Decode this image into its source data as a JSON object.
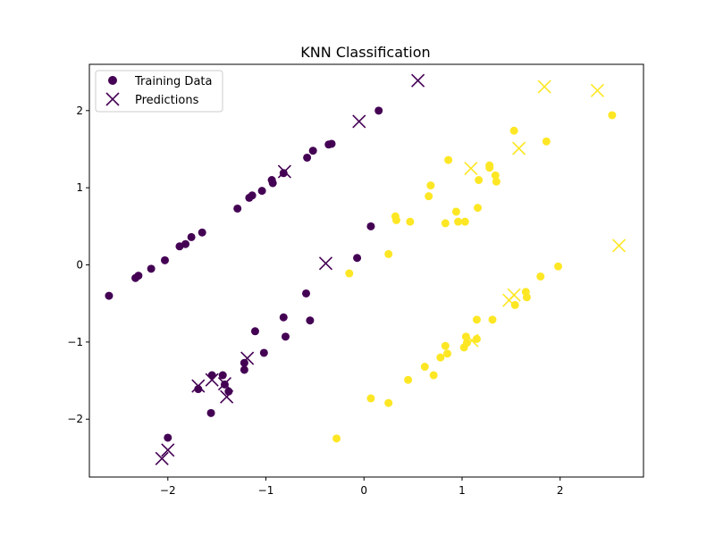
{
  "chart_data": {
    "type": "scatter",
    "title": "KNN Classification",
    "xlabel": "",
    "ylabel": "",
    "xlim": [
      -2.8,
      2.85
    ],
    "ylim": [
      -2.75,
      2.6
    ],
    "xticks": [
      -2,
      -1,
      0,
      1,
      2
    ],
    "yticks": [
      -2,
      -1,
      0,
      1,
      2
    ],
    "xtick_labels": [
      "−2",
      "−1",
      "0",
      "1",
      "2"
    ],
    "ytick_labels": [
      "−2",
      "−1",
      "0",
      "1",
      "2"
    ],
    "grid": false,
    "legend": {
      "placement": "top-left",
      "entries": [
        "Training Data",
        "Predictions"
      ]
    },
    "colors": {
      "class_0": "#440154",
      "class_1": "#fde725"
    },
    "series": [
      {
        "name": "Training Data",
        "marker": "circle",
        "points": [
          {
            "x": -2.6,
            "y": -0.4,
            "c": 0
          },
          {
            "x": -2.33,
            "y": -0.17,
            "c": 0
          },
          {
            "x": -2.3,
            "y": -0.14,
            "c": 0
          },
          {
            "x": -2.17,
            "y": -0.05,
            "c": 0
          },
          {
            "x": -2.03,
            "y": 0.06,
            "c": 0
          },
          {
            "x": -1.88,
            "y": 0.24,
            "c": 0
          },
          {
            "x": -1.82,
            "y": 0.27,
            "c": 0
          },
          {
            "x": -1.76,
            "y": 0.36,
            "c": 0
          },
          {
            "x": -1.65,
            "y": 0.42,
            "c": 0
          },
          {
            "x": -1.29,
            "y": 0.73,
            "c": 0
          },
          {
            "x": -1.17,
            "y": 0.87,
            "c": 0
          },
          {
            "x": -1.14,
            "y": 0.9,
            "c": 0
          },
          {
            "x": -1.04,
            "y": 0.96,
            "c": 0
          },
          {
            "x": -0.94,
            "y": 1.1,
            "c": 0
          },
          {
            "x": -0.93,
            "y": 1.06,
            "c": 0
          },
          {
            "x": -0.82,
            "y": 1.19,
            "c": 0
          },
          {
            "x": -0.58,
            "y": 1.39,
            "c": 0
          },
          {
            "x": -0.52,
            "y": 1.48,
            "c": 0
          },
          {
            "x": -0.36,
            "y": 1.56,
            "c": 0
          },
          {
            "x": -0.33,
            "y": 1.57,
            "c": 0
          },
          {
            "x": 0.15,
            "y": 2.0,
            "c": 0
          },
          {
            "x": 0.07,
            "y": 0.5,
            "c": 0
          },
          {
            "x": -0.07,
            "y": 0.09,
            "c": 0
          },
          {
            "x": -0.59,
            "y": -0.37,
            "c": 0
          },
          {
            "x": -0.55,
            "y": -0.72,
            "c": 0
          },
          {
            "x": -0.82,
            "y": -0.68,
            "c": 0
          },
          {
            "x": -0.8,
            "y": -0.93,
            "c": 0
          },
          {
            "x": -1.11,
            "y": -0.86,
            "c": 0
          },
          {
            "x": -1.02,
            "y": -1.14,
            "c": 0
          },
          {
            "x": -1.22,
            "y": -1.27,
            "c": 0
          },
          {
            "x": -1.22,
            "y": -1.36,
            "c": 0
          },
          {
            "x": -1.44,
            "y": -1.43,
            "c": 0
          },
          {
            "x": -1.55,
            "y": -1.43,
            "c": 0
          },
          {
            "x": -1.42,
            "y": -1.55,
            "c": 0
          },
          {
            "x": -1.38,
            "y": -1.64,
            "c": 0
          },
          {
            "x": -1.69,
            "y": -1.61,
            "c": 0
          },
          {
            "x": -1.56,
            "y": -1.92,
            "c": 0
          },
          {
            "x": -2.0,
            "y": -2.24,
            "c": 0
          },
          {
            "x": 2.53,
            "y": 1.94,
            "c": 1
          },
          {
            "x": 1.53,
            "y": 1.74,
            "c": 1
          },
          {
            "x": 1.86,
            "y": 1.6,
            "c": 1
          },
          {
            "x": 0.86,
            "y": 1.36,
            "c": 1
          },
          {
            "x": 1.28,
            "y": 1.29,
            "c": 1
          },
          {
            "x": 1.28,
            "y": 1.26,
            "c": 1
          },
          {
            "x": 1.34,
            "y": 1.16,
            "c": 1
          },
          {
            "x": 1.17,
            "y": 1.1,
            "c": 1
          },
          {
            "x": 1.35,
            "y": 1.08,
            "c": 1
          },
          {
            "x": 0.68,
            "y": 1.03,
            "c": 1
          },
          {
            "x": 0.66,
            "y": 0.89,
            "c": 1
          },
          {
            "x": 1.16,
            "y": 0.74,
            "c": 1
          },
          {
            "x": 0.94,
            "y": 0.69,
            "c": 1
          },
          {
            "x": 0.32,
            "y": 0.63,
            "c": 1
          },
          {
            "x": 0.33,
            "y": 0.58,
            "c": 1
          },
          {
            "x": 0.47,
            "y": 0.56,
            "c": 1
          },
          {
            "x": 0.96,
            "y": 0.56,
            "c": 1
          },
          {
            "x": 1.03,
            "y": 0.56,
            "c": 1
          },
          {
            "x": 0.83,
            "y": 0.54,
            "c": 1
          },
          {
            "x": 0.25,
            "y": 0.14,
            "c": 1
          },
          {
            "x": -0.15,
            "y": -0.11,
            "c": 1
          },
          {
            "x": 1.98,
            "y": -0.02,
            "c": 1
          },
          {
            "x": 1.8,
            "y": -0.15,
            "c": 1
          },
          {
            "x": 1.65,
            "y": -0.35,
            "c": 1
          },
          {
            "x": 1.66,
            "y": -0.42,
            "c": 1
          },
          {
            "x": 1.54,
            "y": -0.52,
            "c": 1
          },
          {
            "x": 1.15,
            "y": -0.71,
            "c": 1
          },
          {
            "x": 1.31,
            "y": -0.71,
            "c": 1
          },
          {
            "x": 1.04,
            "y": -0.93,
            "c": 1
          },
          {
            "x": 1.15,
            "y": -0.96,
            "c": 1
          },
          {
            "x": 1.05,
            "y": -1.01,
            "c": 1
          },
          {
            "x": 1.02,
            "y": -1.07,
            "c": 1
          },
          {
            "x": 0.83,
            "y": -1.05,
            "c": 1
          },
          {
            "x": 0.85,
            "y": -1.15,
            "c": 1
          },
          {
            "x": 0.78,
            "y": -1.2,
            "c": 1
          },
          {
            "x": 0.62,
            "y": -1.32,
            "c": 1
          },
          {
            "x": 0.71,
            "y": -1.43,
            "c": 1
          },
          {
            "x": 0.45,
            "y": -1.49,
            "c": 1
          },
          {
            "x": 0.07,
            "y": -1.73,
            "c": 1
          },
          {
            "x": 0.25,
            "y": -1.79,
            "c": 1
          },
          {
            "x": -0.28,
            "y": -2.25,
            "c": 1
          }
        ]
      },
      {
        "name": "Predictions",
        "marker": "x",
        "points": [
          {
            "x": 0.55,
            "y": 2.39,
            "c": 0
          },
          {
            "x": -0.05,
            "y": 1.86,
            "c": 0
          },
          {
            "x": -0.81,
            "y": 1.21,
            "c": 0
          },
          {
            "x": -0.39,
            "y": 0.02,
            "c": 0
          },
          {
            "x": -1.19,
            "y": -1.21,
            "c": 0
          },
          {
            "x": -1.69,
            "y": -1.57,
            "c": 0
          },
          {
            "x": -1.55,
            "y": -1.49,
            "c": 0
          },
          {
            "x": -1.42,
            "y": -1.54,
            "c": 0
          },
          {
            "x": -1.4,
            "y": -1.71,
            "c": 0
          },
          {
            "x": -2.0,
            "y": -2.4,
            "c": 0
          },
          {
            "x": -2.06,
            "y": -2.51,
            "c": 0
          },
          {
            "x": 1.84,
            "y": 2.31,
            "c": 1
          },
          {
            "x": 2.38,
            "y": 2.26,
            "c": 1
          },
          {
            "x": 1.58,
            "y": 1.51,
            "c": 1
          },
          {
            "x": 1.09,
            "y": 1.25,
            "c": 1
          },
          {
            "x": 2.6,
            "y": 0.25,
            "c": 1
          },
          {
            "x": 1.53,
            "y": -0.39,
            "c": 1
          },
          {
            "x": 1.48,
            "y": -0.46,
            "c": 1
          },
          {
            "x": 1.1,
            "y": -0.98,
            "c": 1
          }
        ]
      }
    ]
  }
}
